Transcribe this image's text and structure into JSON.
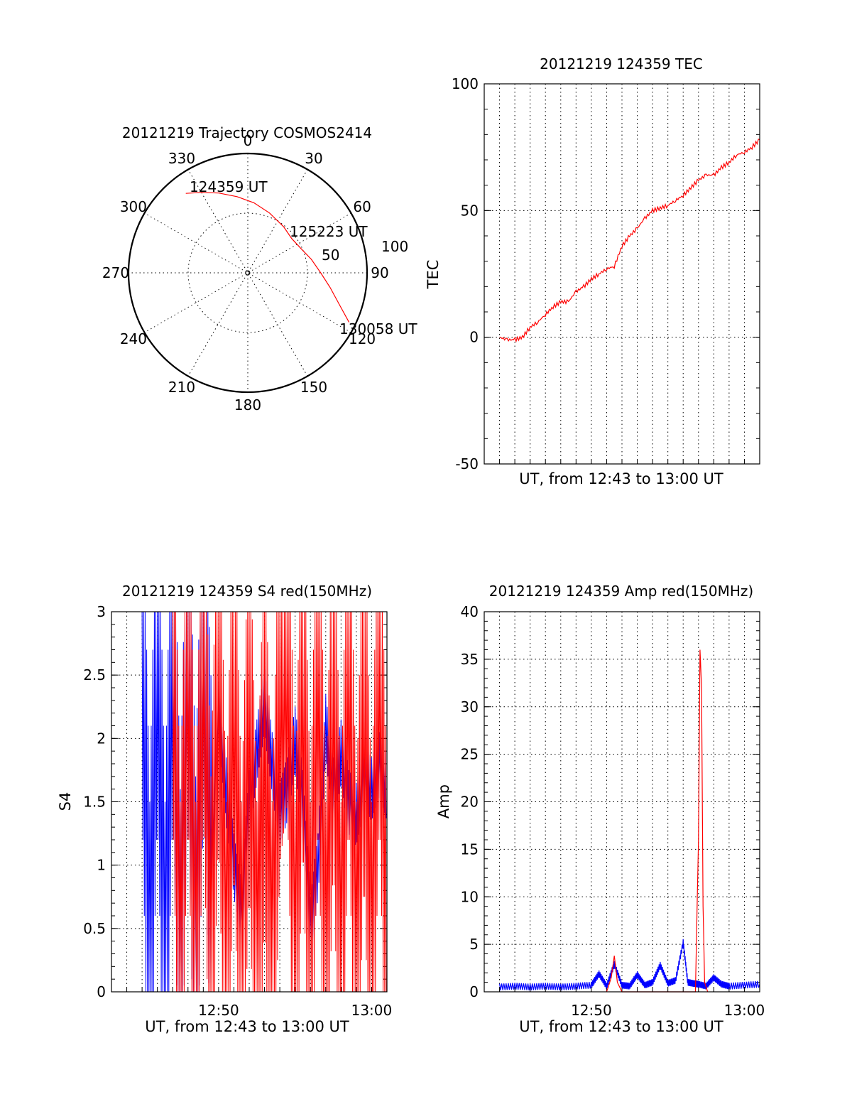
{
  "chart_data": [
    {
      "type": "polar",
      "title": "20121219 Trajectory COSMOS2414",
      "azimuth_labels": [
        "0",
        "30",
        "60",
        "90",
        "120",
        "150",
        "180",
        "210",
        "240",
        "270",
        "300",
        "330"
      ],
      "radial_ring_labels": [
        "50",
        "100"
      ],
      "annotations": [
        "124359 UT",
        "125223 UT",
        "130058 UT"
      ],
      "series": [
        {
          "color": "#ff0000",
          "points": [
            {
              "az": 322,
              "el": 14
            },
            {
              "az": 330,
              "el": 20
            },
            {
              "az": 340,
              "el": 26
            },
            {
              "az": 352,
              "el": 32
            },
            {
              "az": 5,
              "el": 37
            },
            {
              "az": 20,
              "el": 42
            },
            {
              "az": 38,
              "el": 46
            },
            {
              "az": 52,
              "el": 48
            },
            {
              "az": 65,
              "el": 46
            },
            {
              "az": 78,
              "el": 41
            },
            {
              "az": 90,
              "el": 35
            },
            {
              "az": 100,
              "el": 27
            },
            {
              "az": 109,
              "el": 17
            },
            {
              "az": 116,
              "el": 5
            }
          ]
        }
      ]
    },
    {
      "type": "line",
      "title": "20121219 124359 TEC",
      "xlabel": "UT, from 12:43 to 13:00 UT",
      "ylabel": "TEC",
      "ylim": [
        -50,
        100
      ],
      "yticks": [
        "-50",
        "0",
        "50",
        "100"
      ],
      "xlim_minutes": [
        12.0,
        30.0
      ],
      "grid": true,
      "series": [
        {
          "color": "#ff0000",
          "x": [
            13.0,
            13.5,
            14.0,
            14.5,
            15.0,
            15.5,
            16.0,
            16.5,
            17.0,
            17.5,
            18.0,
            18.5,
            19.0,
            19.5,
            20.0,
            20.5,
            21.0,
            21.5,
            22.0,
            22.5,
            23.0,
            23.5,
            24.0,
            24.5,
            25.0,
            25.5,
            26.0,
            26.5,
            27.0,
            27.5,
            28.0,
            28.5,
            29.0,
            29.5,
            30.0
          ],
          "y": [
            0,
            -1,
            -1,
            0,
            4,
            6,
            9,
            12,
            14,
            14,
            18,
            20,
            23,
            25,
            27,
            28,
            36,
            40,
            43,
            47,
            50,
            51,
            52,
            54,
            56,
            59,
            62,
            64,
            64,
            67,
            69,
            72,
            73,
            75,
            78
          ]
        }
      ]
    },
    {
      "type": "line",
      "title": "20121219 124359 S4 red(150MHz)",
      "xlabel": "UT, from 12:43 to 13:00 UT",
      "ylabel": "S4",
      "ylim": [
        0,
        3
      ],
      "yticks": [
        "0",
        "0.5",
        "1",
        "1.5",
        "2",
        "2.5",
        "3"
      ],
      "xticks": [
        "12:50",
        "13:00"
      ],
      "xlim_minutes": [
        12.0,
        30.0
      ],
      "grid": true,
      "series": [
        {
          "color": "#0000ff",
          "x": [
            14.0,
            14.5,
            15.0,
            15.5,
            16.0,
            16.5,
            17.0,
            17.5,
            18.0,
            18.5,
            19.0,
            19.5,
            20.0,
            20.5,
            21.0,
            21.5,
            22.0,
            22.5,
            23.0,
            23.5,
            24.0,
            24.5,
            25.0,
            25.5,
            26.0,
            26.5,
            27.0,
            27.5,
            28.0,
            28.5,
            29.0,
            29.5,
            30.0
          ],
          "y": [
            3.0,
            0.0,
            3.0,
            0.0,
            3.0,
            0.1,
            3.0,
            0.2,
            2.9,
            1.0,
            2.2,
            1.6,
            1.0,
            0.6,
            1.5,
            1.9,
            2.3,
            1.8,
            1.4,
            1.6,
            2.0,
            1.5,
            0.5,
            1.0,
            2.1,
            1.6,
            1.9,
            1.5,
            1.4,
            1.7,
            1.6,
            1.8,
            1.6
          ]
        },
        {
          "color": "#ff0000",
          "x": [
            16.0,
            16.5,
            17.0,
            17.5,
            18.0,
            18.5,
            19.0,
            19.5,
            20.0,
            20.5,
            21.0,
            21.5,
            22.0,
            22.5,
            23.0,
            23.5,
            24.0,
            24.5,
            25.0,
            25.5,
            26.0,
            26.5,
            27.0,
            27.5,
            28.0,
            28.5,
            29.0,
            29.5,
            30.0
          ],
          "y": [
            3.0,
            0.0,
            3.0,
            0.0,
            3.0,
            0.2,
            2.8,
            0.0,
            2.6,
            0.0,
            2.4,
            0.0,
            2.1,
            0.0,
            2.5,
            3.0,
            0.0,
            2.8,
            0.0,
            3.0,
            0.0,
            2.6,
            0.0,
            3.0,
            0.0,
            2.5,
            0.0,
            3.0,
            0.0
          ]
        }
      ]
    },
    {
      "type": "line",
      "title": "20121219 124359 Amp red(150MHz)",
      "xlabel": "UT, from 12:43 to 13:00 UT",
      "ylabel": "Amp",
      "ylim": [
        0,
        40
      ],
      "yticks": [
        "0",
        "5",
        "10",
        "15",
        "20",
        "25",
        "30",
        "35",
        "40"
      ],
      "xticks": [
        "12:50",
        "13:00"
      ],
      "xlim_minutes": [
        12.0,
        30.0
      ],
      "grid": true,
      "series": [
        {
          "color": "#0000ff",
          "x": [
            13.0,
            14.0,
            15.0,
            16.0,
            17.0,
            18.0,
            19.0,
            19.5,
            20.0,
            20.5,
            21.0,
            21.5,
            22.0,
            22.5,
            23.0,
            23.5,
            24.0,
            24.5,
            25.0,
            25.3,
            25.6,
            26.0,
            26.5,
            27.0,
            27.5,
            28.0,
            29.0,
            30.0
          ],
          "y": [
            0.5,
            0.6,
            0.5,
            0.6,
            0.5,
            0.6,
            0.7,
            1.9,
            0.6,
            2.9,
            0.7,
            0.6,
            1.8,
            0.7,
            1.0,
            2.8,
            0.9,
            1.2,
            5.2,
            1.0,
            0.9,
            0.8,
            0.6,
            1.5,
            0.8,
            0.6,
            0.7,
            0.8
          ]
        },
        {
          "color": "#ff0000",
          "x": [
            20.0,
            20.3,
            20.5,
            20.7,
            21.0,
            25.8,
            26.0,
            26.1,
            26.2,
            26.3,
            26.4,
            26.6
          ],
          "y": [
            0.0,
            1.5,
            3.8,
            1.0,
            0.0,
            0.0,
            16.0,
            36.0,
            32.0,
            9.0,
            1.0,
            0.0
          ]
        }
      ]
    }
  ]
}
